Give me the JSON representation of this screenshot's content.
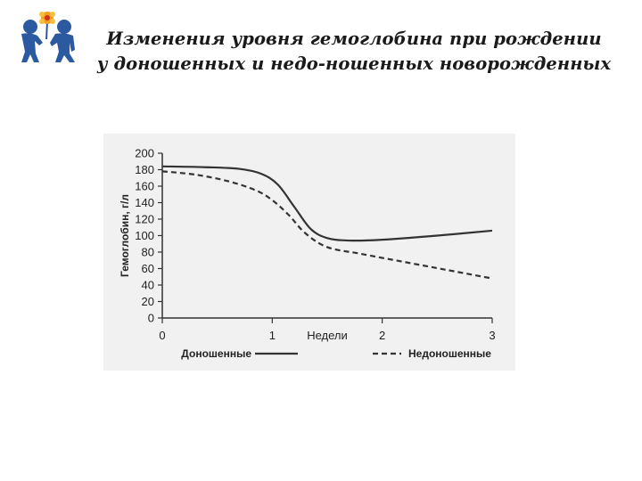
{
  "slide": {
    "title_line1": "Изменения уровня гемоглобина при рождении",
    "title_line2": "у доношенных и недо-ношенных новорожденных"
  },
  "logo": {
    "icon": "children-with-flower-icon",
    "color": "#2c5aa0",
    "flower_color": "#f0a020"
  },
  "chart_data": {
    "type": "line",
    "title": "",
    "ylabel": "Гемоглобин, г/л",
    "xlabel": "Недели",
    "ylim": [
      0,
      200
    ],
    "xlim": [
      0,
      3
    ],
    "yticks": [
      0,
      20,
      40,
      60,
      80,
      100,
      120,
      140,
      160,
      180,
      200
    ],
    "xticks": [
      0,
      1,
      2,
      3
    ],
    "grid": false,
    "legend_position": "bottom",
    "series": [
      {
        "name": "Доношенные",
        "style": "solid",
        "color": "#333333",
        "points": [
          [
            0,
            184
          ],
          [
            0.4,
            183
          ],
          [
            0.7,
            181
          ],
          [
            0.9,
            175
          ],
          [
            1.05,
            162
          ],
          [
            1.2,
            135
          ],
          [
            1.35,
            108
          ],
          [
            1.5,
            97
          ],
          [
            1.7,
            94
          ],
          [
            2.0,
            95
          ],
          [
            2.5,
            100
          ],
          [
            3.0,
            106
          ]
        ]
      },
      {
        "name": "Недоношенные",
        "style": "dashed",
        "color": "#333333",
        "points": [
          [
            0,
            178
          ],
          [
            0.3,
            174
          ],
          [
            0.6,
            166
          ],
          [
            0.85,
            155
          ],
          [
            1.0,
            143
          ],
          [
            1.15,
            125
          ],
          [
            1.3,
            103
          ],
          [
            1.5,
            86
          ],
          [
            1.8,
            78
          ],
          [
            2.2,
            68
          ],
          [
            2.6,
            58
          ],
          [
            3.0,
            48
          ]
        ]
      }
    ]
  }
}
